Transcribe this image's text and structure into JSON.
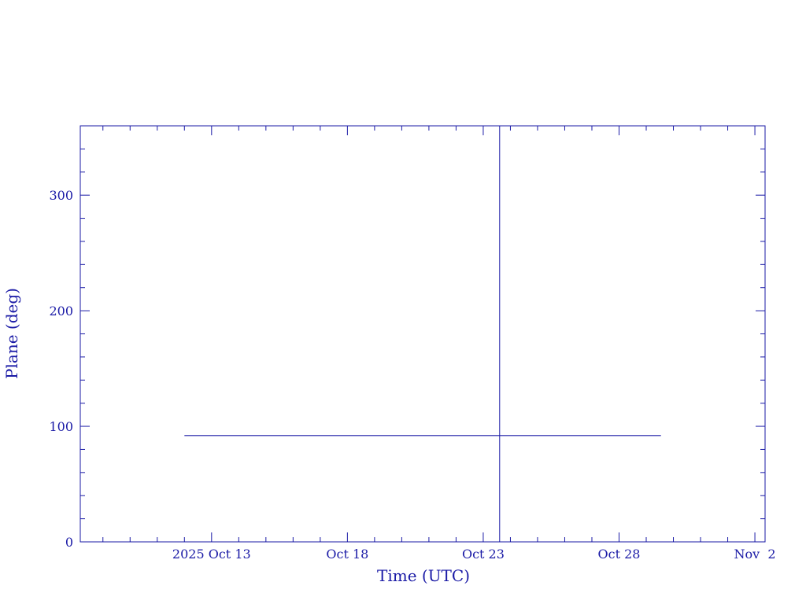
{
  "chart_data": {
    "type": "line",
    "title": "",
    "xlabel": "Time (UTC)",
    "ylabel": "Plane (deg)",
    "xlim": [
      "2025-10-08T04:00",
      "2025-11-02T09:00"
    ],
    "ylim": [
      0,
      360
    ],
    "x_major_ticks": [
      {
        "date": "2025-10-13",
        "label": "2025 Oct 13"
      },
      {
        "date": "2025-10-18",
        "label": "Oct 18"
      },
      {
        "date": "2025-10-23",
        "label": "Oct 23"
      },
      {
        "date": "2025-10-28",
        "label": "Oct 28"
      },
      {
        "date": "2025-11-02",
        "label": "Nov  2"
      }
    ],
    "x_minor_tick_interval_days": 1,
    "y_major_ticks": [
      0,
      100,
      200,
      300
    ],
    "y_minor_tick_interval": 20,
    "grid": false,
    "color": "#1a1aa6",
    "series": [
      {
        "x": [
          "2025-10-12T00:00",
          "2025-10-29T13:00"
        ],
        "y": [
          92,
          92
        ]
      }
    ],
    "vertical_lines": [
      {
        "x": "2025-10-23T14:30"
      }
    ]
  }
}
